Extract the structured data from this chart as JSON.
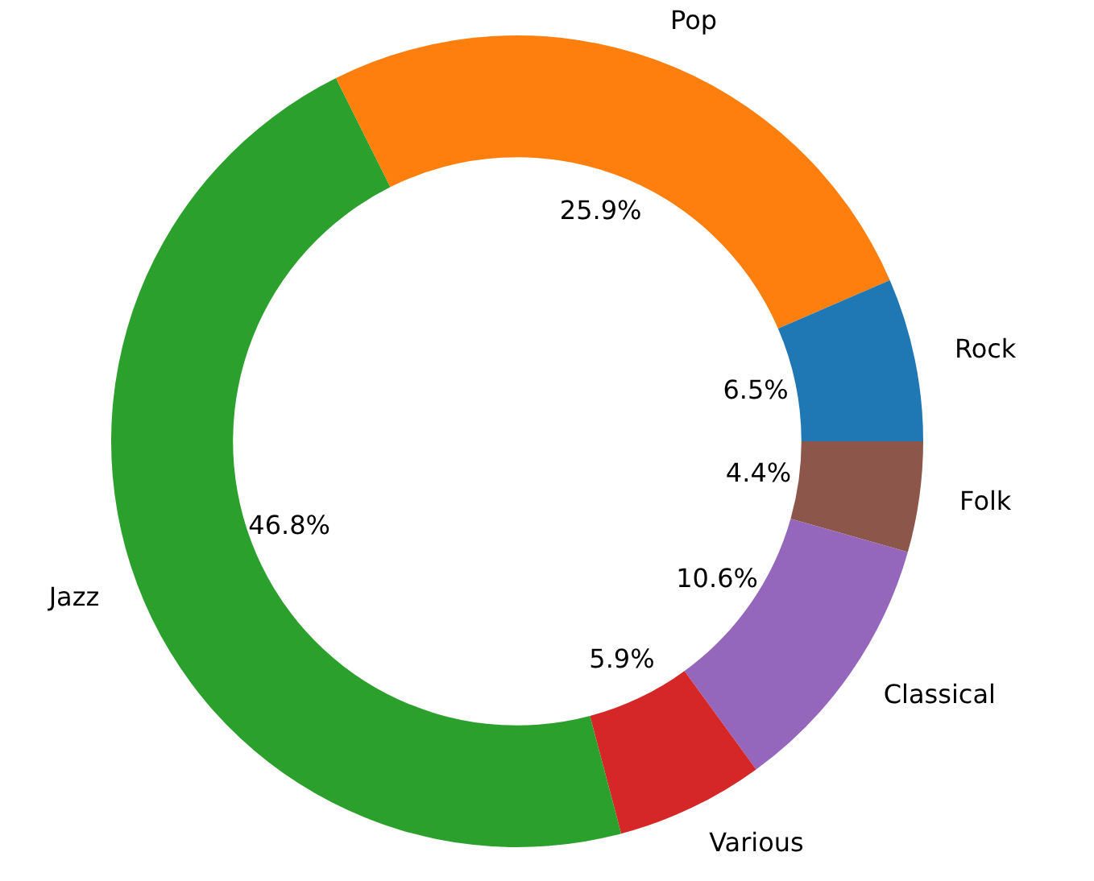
{
  "chart_data": {
    "type": "donut",
    "categories": [
      "Rock",
      "Pop",
      "Jazz",
      "Various",
      "Classical",
      "Folk"
    ],
    "values": [
      6.5,
      25.9,
      46.8,
      5.9,
      10.6,
      4.4
    ],
    "colors": [
      "#1f77b4",
      "#ff7f0e",
      "#2ca02c",
      "#d62728",
      "#9467bd",
      "#8c564b"
    ],
    "value_labels": [
      "6.5%",
      "25.9%",
      "46.8%",
      "5.9%",
      "10.6%",
      "4.4%"
    ],
    "legend": false
  }
}
